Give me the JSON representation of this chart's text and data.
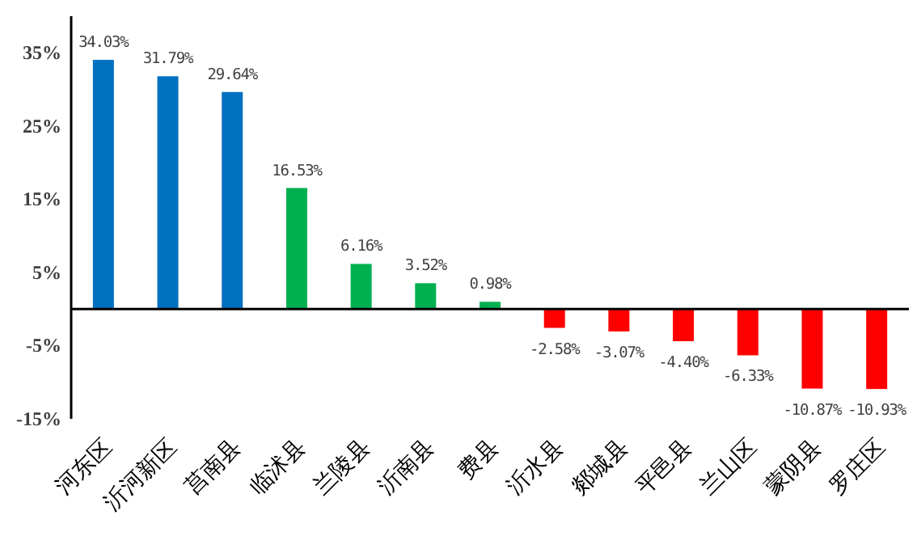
{
  "chart_data": {
    "type": "bar",
    "categories": [
      "河东区",
      "沂河新区",
      "莒南县",
      "临沭县",
      "兰陵县",
      "沂南县",
      "费县",
      "沂水县",
      "郯城县",
      "平邑县",
      "兰山区",
      "蒙阴县",
      "罗庄区"
    ],
    "values": [
      34.03,
      31.79,
      29.64,
      16.53,
      6.16,
      3.52,
      0.98,
      -2.58,
      -3.07,
      -4.4,
      -6.33,
      -10.87,
      -10.93
    ],
    "colors": [
      "#0070c0",
      "#0070c0",
      "#0070c0",
      "#00b050",
      "#00b050",
      "#00b050",
      "#00b050",
      "#ff0000",
      "#ff0000",
      "#ff0000",
      "#ff0000",
      "#ff0000",
      "#ff0000"
    ],
    "value_labels": [
      "34.03%",
      "31.79%",
      "29.64%",
      "16.53%",
      "6.16%",
      "3.52%",
      "0.98%",
      "-2.58%",
      "-3.07%",
      "-4.40%",
      "-6.33%",
      "-10.87%",
      "-10.93%"
    ],
    "ylim": [
      -15,
      40
    ],
    "yticks": [
      {
        "value": 35,
        "label": "35%"
      },
      {
        "value": 25,
        "label": "25%"
      },
      {
        "value": 15,
        "label": "15%"
      },
      {
        "value": 5,
        "label": "5%"
      },
      {
        "value": -5,
        "label": "-5%"
      },
      {
        "value": -15,
        "label": "-15%"
      }
    ],
    "grid": false
  }
}
